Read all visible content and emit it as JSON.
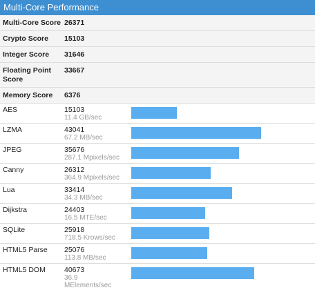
{
  "header": {
    "title": "Multi-Core Performance"
  },
  "summary": [
    {
      "label": "Multi-Core Score",
      "value": "26371"
    },
    {
      "label": "Crypto Score",
      "value": "15103"
    },
    {
      "label": "Integer Score",
      "value": "31646"
    },
    {
      "label": "Floating Point Score",
      "value": "33667"
    },
    {
      "label": "Memory Score",
      "value": "6376"
    }
  ],
  "workloads": [
    {
      "name": "AES",
      "score": 15103,
      "rate": "11.4 GB/sec"
    },
    {
      "name": "LZMA",
      "score": 43041,
      "rate": "67.2 MB/sec"
    },
    {
      "name": "JPEG",
      "score": 35676,
      "rate": "287.1 Mpixels/sec"
    },
    {
      "name": "Canny",
      "score": 26312,
      "rate": "364.9 Mpixels/sec"
    },
    {
      "name": "Lua",
      "score": 33414,
      "rate": "34.3 MB/sec"
    },
    {
      "name": "Dijkstra",
      "score": 24403,
      "rate": "16.5 MTE/sec"
    },
    {
      "name": "SQLite",
      "score": 25918,
      "rate": "718.5 Krows/sec"
    },
    {
      "name": "HTML5 Parse",
      "score": 25076,
      "rate": "113.8 MB/sec"
    },
    {
      "name": "HTML5 DOM",
      "score": 40673,
      "rate": "36.9 MElements/sec"
    }
  ],
  "bar_color": "#5aaef0"
}
